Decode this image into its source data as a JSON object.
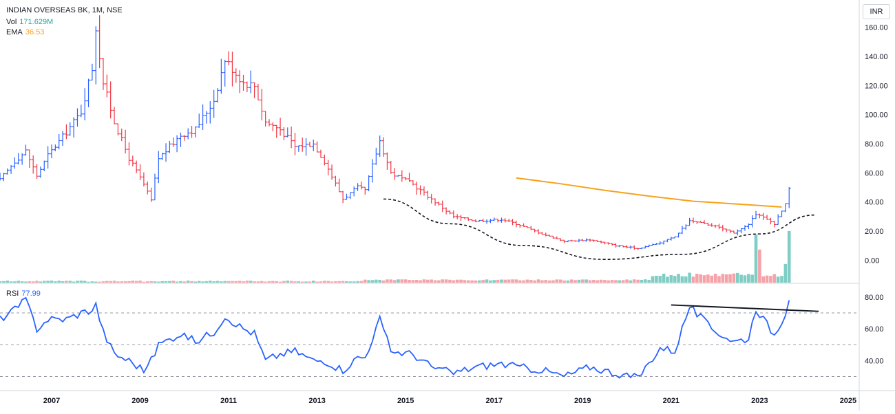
{
  "header": {
    "symbol": "INDIAN OVERSEAS BK, 1M, NSE",
    "vol_label": "Vol",
    "vol_value": "171.629M",
    "ema_label": "EMA",
    "ema_value": "36.53",
    "currency_button": "INR"
  },
  "rsi_header": {
    "label": "RSI",
    "value": "77.99"
  },
  "colors": {
    "up": "#2962ff",
    "down": "#f23645",
    "vol_up": "#7fcdc4",
    "vol_down": "#f5a3a9",
    "ema": "#f7a21b",
    "rsi": "#2962ff",
    "vol_value": "#26a69a",
    "ema_value": "#f7a21b",
    "rsi_value": "#2962ff"
  },
  "chart_data": [
    {
      "type": "ohlc",
      "title": "INDIAN OVERSEAS BK, 1M, NSE",
      "interval": "monthly",
      "x_axis_labels": [
        "2007",
        "2009",
        "2011",
        "2013",
        "2015",
        "2017",
        "2019",
        "2021",
        "2023",
        "2025"
      ],
      "y_axis_labels": [
        "160.00",
        "140.00",
        "120.00",
        "100.00",
        "80.00",
        "60.00",
        "40.00",
        "20.00",
        "0.00"
      ],
      "y_axis_position": "right",
      "ylim": [
        -15,
        175
      ],
      "price_path": [
        [
          "2005-11",
          55
        ],
        [
          "2006-03",
          68
        ],
        [
          "2006-06",
          75
        ],
        [
          "2006-09",
          58
        ],
        [
          "2006-12",
          72
        ],
        [
          "2007-05",
          88
        ],
        [
          "2007-09",
          102
        ],
        [
          "2007-12",
          132
        ],
        [
          "2008-01",
          160
        ],
        [
          "2008-03",
          122
        ],
        [
          "2008-06",
          95
        ],
        [
          "2008-10",
          70
        ],
        [
          "2009-02",
          52
        ],
        [
          "2009-04",
          41
        ],
        [
          "2009-06",
          70
        ],
        [
          "2009-12",
          86
        ],
        [
          "2010-04",
          90
        ],
        [
          "2010-09",
          110
        ],
        [
          "2010-12",
          138
        ],
        [
          "2011-05",
          122
        ],
        [
          "2011-08",
          120
        ],
        [
          "2011-11",
          95
        ],
        [
          "2012-03",
          90
        ],
        [
          "2012-07",
          78
        ],
        [
          "2012-12",
          80
        ],
        [
          "2013-03",
          68
        ],
        [
          "2013-08",
          42
        ],
        [
          "2013-12",
          50
        ],
        [
          "2014-02",
          48
        ],
        [
          "2014-06",
          82
        ],
        [
          "2014-09",
          60
        ],
        [
          "2015-03",
          52
        ],
        [
          "2015-08",
          42
        ],
        [
          "2016-02",
          30
        ],
        [
          "2016-08",
          27
        ],
        [
          "2017-03",
          28
        ],
        [
          "2017-07",
          25
        ],
        [
          "2018-02",
          18
        ],
        [
          "2018-08",
          13
        ],
        [
          "2019-03",
          14
        ],
        [
          "2019-10",
          10
        ],
        [
          "2020-04",
          8
        ],
        [
          "2020-10",
          12
        ],
        [
          "2021-02",
          16
        ],
        [
          "2021-06",
          27
        ],
        [
          "2021-12",
          24
        ],
        [
          "2022-06",
          19
        ],
        [
          "2022-10",
          24
        ],
        [
          "2022-12",
          32
        ],
        [
          "2023-05",
          25
        ],
        [
          "2023-08",
          38
        ],
        [
          "2023-09",
          49
        ]
      ],
      "series": [
        {
          "name": "EMA",
          "type": "line",
          "points": [
            [
              "2017-07",
              56.5
            ],
            [
              "2018-07",
              52.5
            ],
            [
              "2019-07",
              48
            ],
            [
              "2020-07",
              44
            ],
            [
              "2021-07",
              40.5
            ],
            [
              "2022-07",
              38.5
            ],
            [
              "2023-07",
              36.5
            ]
          ]
        },
        {
          "type": "dashed-curve",
          "points": [
            [
              "2014-07",
              42
            ],
            [
              "2016-01",
              25
            ],
            [
              "2017-09",
              10
            ],
            [
              "2019-07",
              0.5
            ],
            [
              "2021-04",
              4
            ],
            [
              "2023-01",
              18
            ],
            [
              "2024-04",
              31
            ]
          ]
        }
      ],
      "volume": {
        "label": "Vol",
        "last_value": "171.629M",
        "peaks": [
          [
            "2021-01",
            25
          ],
          [
            "2021-06",
            33
          ],
          [
            "2022-12",
            160
          ],
          [
            "2023-01",
            110
          ],
          [
            "2023-08",
            62
          ],
          [
            "2023-09",
            171.6
          ]
        ],
        "unit": "M"
      }
    },
    {
      "type": "line",
      "title": "RSI",
      "last_value": "77.99",
      "y_axis_labels": [
        "80.00",
        "60.00",
        "40.00"
      ],
      "ylim": [
        22,
        86
      ],
      "reference_lines": [
        70,
        50,
        30
      ],
      "values_path": [
        [
          "2005-11",
          66
        ],
        [
          "2006-03",
          72
        ],
        [
          "2006-06",
          78
        ],
        [
          "2006-09",
          60
        ],
        [
          "2006-12",
          66
        ],
        [
          "2007-05",
          66
        ],
        [
          "2007-09",
          70
        ],
        [
          "2007-12",
          72
        ],
        [
          "2008-01",
          75
        ],
        [
          "2008-03",
          58
        ],
        [
          "2008-06",
          44
        ],
        [
          "2008-10",
          40
        ],
        [
          "2009-02",
          34
        ],
        [
          "2009-04",
          40
        ],
        [
          "2009-06",
          50
        ],
        [
          "2009-12",
          57
        ],
        [
          "2010-04",
          52
        ],
        [
          "2010-09",
          58
        ],
        [
          "2010-12",
          68
        ],
        [
          "2011-05",
          60
        ],
        [
          "2011-08",
          57
        ],
        [
          "2011-11",
          40
        ],
        [
          "2012-03",
          44
        ],
        [
          "2012-07",
          46
        ],
        [
          "2012-12",
          40
        ],
        [
          "2013-03",
          40
        ],
        [
          "2013-08",
          34
        ],
        [
          "2013-12",
          42
        ],
        [
          "2014-02",
          42
        ],
        [
          "2014-06",
          66
        ],
        [
          "2014-09",
          46
        ],
        [
          "2015-03",
          44
        ],
        [
          "2015-08",
          36
        ],
        [
          "2016-02",
          32
        ],
        [
          "2016-08",
          36
        ],
        [
          "2017-03",
          38
        ],
        [
          "2017-07",
          36
        ],
        [
          "2018-02",
          34
        ],
        [
          "2018-08",
          30
        ],
        [
          "2019-03",
          36
        ],
        [
          "2019-10",
          32
        ],
        [
          "2020-04",
          29
        ],
        [
          "2020-10",
          48
        ],
        [
          "2021-02",
          46
        ],
        [
          "2021-06",
          74
        ],
        [
          "2021-12",
          60
        ],
        [
          "2022-06",
          52
        ],
        [
          "2022-10",
          54
        ],
        [
          "2022-12",
          73
        ],
        [
          "2023-05",
          56
        ],
        [
          "2023-08",
          70
        ],
        [
          "2023-09",
          77.99
        ]
      ],
      "trendline": [
        [
          "2021-01",
          75
        ],
        [
          "2024-05",
          71
        ]
      ]
    }
  ]
}
